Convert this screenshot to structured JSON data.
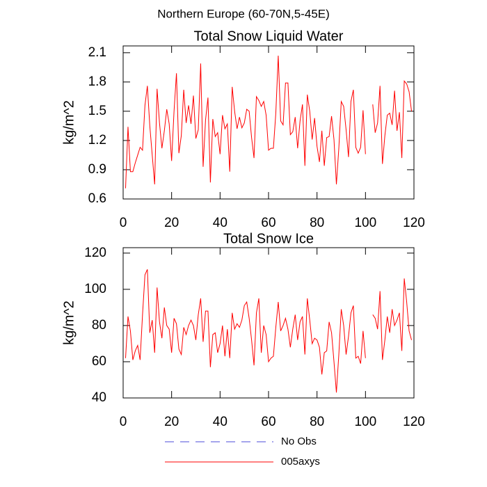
{
  "title": "Northern Europe (60-70N,5-45E)",
  "legend": [
    {
      "name": "No Obs",
      "color": "#4b4bd8",
      "dashed": true
    },
    {
      "name": "005axys",
      "color": "#ff0000",
      "dashed": false
    }
  ],
  "chart_data": [
    {
      "type": "line",
      "title": "Total Snow Liquid Water",
      "y_label": "kg/m^2",
      "x": [
        1,
        2,
        3,
        4,
        5,
        6,
        7,
        8,
        9,
        10,
        11,
        12,
        13,
        14,
        15,
        16,
        17,
        18,
        19,
        20,
        21,
        22,
        23,
        24,
        25,
        26,
        27,
        28,
        29,
        30,
        31,
        32,
        33,
        34,
        35,
        36,
        37,
        38,
        39,
        40,
        41,
        42,
        43,
        44,
        45,
        46,
        47,
        48,
        49,
        50,
        51,
        52,
        53,
        54,
        55,
        56,
        57,
        58,
        59,
        60,
        61,
        62,
        63,
        64,
        65,
        66,
        67,
        68,
        69,
        70,
        71,
        72,
        73,
        74,
        75,
        76,
        77,
        78,
        79,
        80,
        81,
        82,
        83,
        84,
        85,
        86,
        87,
        88,
        89,
        90,
        91,
        92,
        93,
        94,
        95,
        96,
        97,
        98,
        99,
        100,
        101,
        102,
        103,
        104,
        105,
        106,
        107,
        108,
        109,
        110,
        111,
        112,
        113,
        114,
        115,
        116,
        117,
        118,
        119
      ],
      "series": [
        {
          "name": "005axys",
          "color": "#ff0000",
          "values": [
            0.71,
            1.34,
            0.88,
            0.88,
            0.97,
            1.05,
            1.13,
            1.1,
            1.56,
            1.76,
            1.35,
            1.05,
            0.75,
            1.73,
            1.38,
            1.12,
            1.3,
            1.52,
            1.37,
            0.99,
            1.5,
            1.89,
            1.07,
            1.25,
            1.72,
            1.38,
            1.56,
            1.37,
            1.66,
            1.22,
            1.31,
            1.99,
            0.93,
            1.41,
            1.64,
            0.77,
            1.42,
            1.24,
            1.28,
            1.06,
            1.46,
            1.32,
            1.37,
            0.88,
            1.75,
            1.5,
            1.32,
            1.44,
            1.33,
            1.38,
            1.52,
            1.5,
            1.23,
            1.02,
            1.65,
            1.61,
            1.55,
            1.6,
            1.46,
            1.1,
            1.12,
            1.12,
            1.48,
            2.07,
            1.4,
            1.36,
            1.79,
            1.79,
            1.26,
            1.29,
            1.44,
            1.12,
            1.4,
            1.57,
            0.94,
            1.67,
            1.5,
            1.21,
            1.43,
            1.14,
            0.98,
            1.3,
            0.94,
            1.23,
            1.24,
            1.45,
            1.21,
            0.75,
            1.12,
            1.6,
            1.55,
            1.31,
            1.03,
            1.6,
            1.72,
            1.13,
            1.07,
            1.13,
            1.51,
            1.06,
            null,
            null,
            1.57,
            1.28,
            1.38,
            1.76,
            0.96,
            1.25,
            1.46,
            1.48,
            1.36,
            1.71,
            1.3,
            1.49,
            1.02,
            1.81,
            1.78,
            1.7,
            1.5
          ]
        }
      ],
      "xlim": [
        0,
        120
      ],
      "xticks": [
        0,
        20,
        40,
        60,
        80,
        100,
        120
      ],
      "ylim": [
        0.6,
        2.17
      ],
      "yticks": [
        0.6,
        0.9,
        1.2,
        1.5,
        1.8,
        2.1
      ]
    },
    {
      "type": "line",
      "title": "Total Snow Ice",
      "y_label": "kg/m^2",
      "x": [
        1,
        2,
        3,
        4,
        5,
        6,
        7,
        8,
        9,
        10,
        11,
        12,
        13,
        14,
        15,
        16,
        17,
        18,
        19,
        20,
        21,
        22,
        23,
        24,
        25,
        26,
        27,
        28,
        29,
        30,
        31,
        32,
        33,
        34,
        35,
        36,
        37,
        38,
        39,
        40,
        41,
        42,
        43,
        44,
        45,
        46,
        47,
        48,
        49,
        50,
        51,
        52,
        53,
        54,
        55,
        56,
        57,
        58,
        59,
        60,
        61,
        62,
        63,
        64,
        65,
        66,
        67,
        68,
        69,
        70,
        71,
        72,
        73,
        74,
        75,
        76,
        77,
        78,
        79,
        80,
        81,
        82,
        83,
        84,
        85,
        86,
        87,
        88,
        89,
        90,
        91,
        92,
        93,
        94,
        95,
        96,
        97,
        98,
        99,
        100,
        101,
        102,
        103,
        104,
        105,
        106,
        107,
        108,
        109,
        110,
        111,
        112,
        113,
        114,
        115,
        116,
        117,
        118,
        119
      ],
      "series": [
        {
          "name": "005axys",
          "color": "#ff0000",
          "values": [
            62,
            85,
            77,
            61,
            66,
            69,
            61,
            86,
            108,
            111,
            76,
            83,
            65,
            101,
            82,
            73,
            90,
            80,
            78,
            65,
            84,
            81,
            67,
            64,
            79,
            75,
            80,
            83,
            80,
            72,
            86,
            95,
            71,
            88,
            88,
            57,
            75,
            76,
            65,
            70,
            80,
            63,
            78,
            62,
            87,
            78,
            81,
            79,
            83,
            91,
            93,
            84,
            72,
            58,
            87,
            95,
            65,
            80,
            75,
            60,
            62,
            63,
            79,
            93,
            77,
            80,
            84,
            78,
            68,
            78,
            86,
            72,
            82,
            85,
            64,
            95,
            83,
            70,
            73,
            72,
            68,
            53,
            65,
            66,
            82,
            76,
            60,
            43,
            64,
            89,
            80,
            64,
            74,
            87,
            91,
            62,
            63,
            59,
            77,
            62,
            null,
            null,
            86,
            84,
            78,
            99,
            61,
            72,
            85,
            76,
            89,
            80,
            83,
            87,
            66,
            106,
            93,
            77,
            72
          ]
        }
      ],
      "xlim": [
        0,
        120
      ],
      "xticks": [
        0,
        20,
        40,
        60,
        80,
        100,
        120
      ],
      "ylim": [
        40,
        123
      ],
      "yticks": [
        40,
        60,
        80,
        100,
        120
      ]
    }
  ]
}
